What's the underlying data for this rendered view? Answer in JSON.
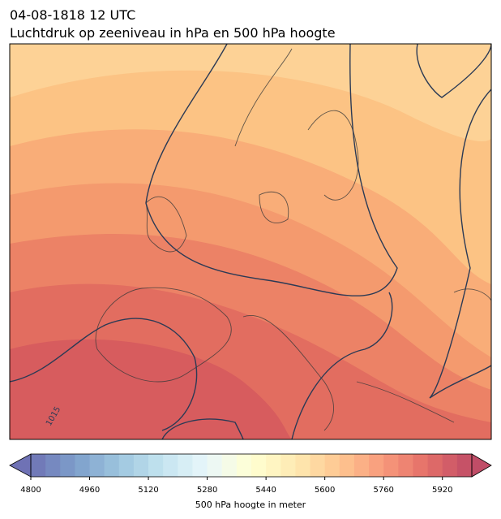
{
  "header": {
    "title": "04-08-1818 12 UTC",
    "subtitle": "Luchtdruk op zeeniveau in hPa en 500 hPa hoogte"
  },
  "map": {
    "contour_label": "1015"
  },
  "colorbar": {
    "label": "500 hPa hoogte in meter",
    "clim": [
      4800,
      6000
    ],
    "ticks": [
      4800,
      4960,
      5120,
      5280,
      5440,
      5600,
      5760,
      5920
    ]
  }
}
